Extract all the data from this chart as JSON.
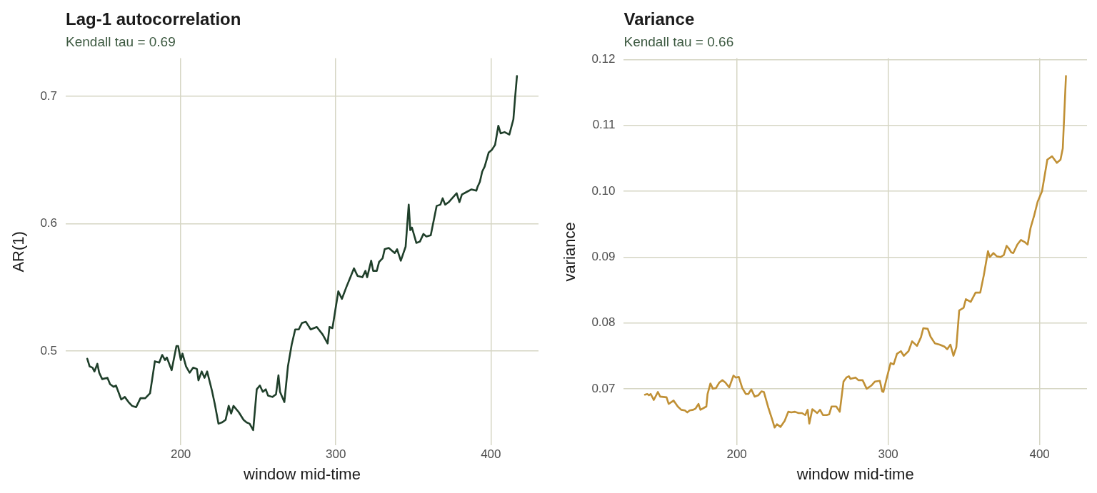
{
  "chart_data": [
    {
      "type": "line",
      "title": "Lag-1 autocorrelation",
      "subtitle": "Kendall tau = 0.69",
      "xlabel": "window mid-time",
      "ylabel": "AR(1)",
      "x": [
        139.7,
        141.2,
        143.1,
        144.3,
        146.2,
        147.4,
        149.3,
        152.7,
        154.4,
        156.7,
        158.2,
        161.6,
        163.9,
        166.3,
        168.6,
        171.2,
        174.0,
        177.1,
        180.2,
        183.3,
        186.1,
        188.0,
        189.8,
        191.0,
        194.1,
        197.2,
        198.3,
        200.0,
        201.1,
        203.4,
        205.7,
        208.0,
        210.4,
        211.4,
        213.5,
        215.3,
        217.0,
        220.1,
        222.0,
        224.3,
        226.6,
        228.9,
        230.9,
        232.5,
        234.0,
        237.4,
        240.5,
        242.4,
        244.4,
        246.7,
        249.0,
        251.0,
        252.9,
        254.8,
        256.3,
        259.1,
        261.4,
        263.0,
        264.0,
        266.8,
        269.1,
        271.5,
        273.8,
        276.1,
        278.1,
        280.7,
        283.8,
        287.7,
        291.5,
        294.7,
        295.9,
        297.8,
        301.6,
        303.9,
        306.7,
        309.4,
        311.7,
        314.0,
        317.1,
        319.1,
        320.2,
        322.8,
        324.1,
        326.4,
        327.9,
        330.2,
        331.5,
        334.1,
        338.0,
        339.5,
        341.9,
        345.0,
        347.0,
        348.0,
        349.1,
        351.9,
        354.2,
        356.5,
        358.4,
        361.2,
        365.0,
        367.4,
        368.9,
        370.5,
        372.8,
        374.3,
        377.9,
        379.7,
        381.3,
        384.4,
        387.5,
        390.6,
        391.4,
        392.9,
        394.4,
        396.0,
        398.6,
        400.6,
        402.7,
        404.8,
        406.3,
        408.8,
        411.9,
        414.5,
        415.6,
        416.8
      ],
      "series": [
        {
          "color": "#1f3f2a",
          "values": [
            0.494,
            0.488,
            0.487,
            0.484,
            0.49,
            0.483,
            0.478,
            0.479,
            0.474,
            0.472,
            0.473,
            0.462,
            0.464,
            0.46,
            0.457,
            0.456,
            0.463,
            0.463,
            0.467,
            0.492,
            0.491,
            0.497,
            0.493,
            0.495,
            0.485,
            0.504,
            0.504,
            0.493,
            0.498,
            0.488,
            0.483,
            0.487,
            0.486,
            0.477,
            0.484,
            0.479,
            0.484,
            0.469,
            0.458,
            0.443,
            0.444,
            0.446,
            0.457,
            0.451,
            0.457,
            0.452,
            0.446,
            0.444,
            0.443,
            0.438,
            0.47,
            0.473,
            0.468,
            0.47,
            0.465,
            0.464,
            0.466,
            0.481,
            0.468,
            0.46,
            0.488,
            0.505,
            0.517,
            0.517,
            0.522,
            0.523,
            0.517,
            0.519,
            0.513,
            0.506,
            0.519,
            0.518,
            0.547,
            0.541,
            0.55,
            0.558,
            0.565,
            0.559,
            0.558,
            0.563,
            0.558,
            0.571,
            0.563,
            0.563,
            0.57,
            0.573,
            0.58,
            0.581,
            0.577,
            0.58,
            0.571,
            0.582,
            0.615,
            0.595,
            0.597,
            0.585,
            0.586,
            0.592,
            0.59,
            0.591,
            0.614,
            0.615,
            0.62,
            0.615,
            0.617,
            0.619,
            0.624,
            0.617,
            0.623,
            0.625,
            0.627,
            0.626,
            0.629,
            0.633,
            0.641,
            0.645,
            0.656,
            0.658,
            0.662,
            0.677,
            0.671,
            0.672,
            0.67,
            0.682,
            0.699,
            0.716
          ]
        }
      ],
      "xlim": [
        125.8,
        430.7
      ],
      "xticks": [
        200,
        300,
        400
      ],
      "ylim": [
        0.426,
        0.73
      ],
      "yticks": [
        0.5,
        0.6,
        0.7
      ],
      "grid": true,
      "legend": false,
      "marker": "none",
      "line_style": "solid"
    },
    {
      "type": "line",
      "title": "Variance",
      "subtitle": "Kendall tau = 0.66",
      "xlabel": "window mid-time",
      "ylabel": "variance",
      "x": [
        139.3,
        140.9,
        142.0,
        143.1,
        145.2,
        147.9,
        149.4,
        153.6,
        155.0,
        158.3,
        161.0,
        163.3,
        165.7,
        167.3,
        168.9,
        171.2,
        172.8,
        174.7,
        176.0,
        179.9,
        180.7,
        182.6,
        184.2,
        186.3,
        188.3,
        190.5,
        192.6,
        195.0,
        197.8,
        199.4,
        201.3,
        203.6,
        206.0,
        207.6,
        209.6,
        211.8,
        214.2,
        216.3,
        217.9,
        221.0,
        223.4,
        225.0,
        226.5,
        228.9,
        231.6,
        234.0,
        236.0,
        238.4,
        240.8,
        243.1,
        245.2,
        246.8,
        247.9,
        249.9,
        253.1,
        255.0,
        256.9,
        259.4,
        261.0,
        262.6,
        265.7,
        268.0,
        270.5,
        272.4,
        274.0,
        275.1,
        278.4,
        280.3,
        283.1,
        285.8,
        289.0,
        291.3,
        294.5,
        296.0,
        296.8,
        298.9,
        301.6,
        303.6,
        305.8,
        308.4,
        310.3,
        313.4,
        315.8,
        319.0,
        321.6,
        323.2,
        326.1,
        328.0,
        330.8,
        333.9,
        337.1,
        339.0,
        341.1,
        343.1,
        345.0,
        346.9,
        349.8,
        351.3,
        354.5,
        357.7,
        360.8,
        363.2,
        365.9,
        367.1,
        369.5,
        371.8,
        374.2,
        376.3,
        378.2,
        379.7,
        381.3,
        382.6,
        385.3,
        387.7,
        390.0,
        392.1,
        394.0,
        396.4,
        398.7,
        401.6,
        405.1,
        408.2,
        411.4,
        413.8,
        415.3,
        417.4
      ],
      "series": [
        {
          "color": "#c09035",
          "values": [
            0.0691,
            0.0692,
            0.069,
            0.0692,
            0.0683,
            0.0695,
            0.0688,
            0.0687,
            0.0677,
            0.0682,
            0.0673,
            0.0668,
            0.0667,
            0.0664,
            0.0667,
            0.0668,
            0.067,
            0.0677,
            0.0668,
            0.0673,
            0.0692,
            0.0708,
            0.07,
            0.0701,
            0.0709,
            0.0713,
            0.0709,
            0.0702,
            0.072,
            0.0717,
            0.0718,
            0.0701,
            0.0692,
            0.0692,
            0.0699,
            0.0688,
            0.069,
            0.0696,
            0.0695,
            0.067,
            0.0653,
            0.0641,
            0.0646,
            0.0642,
            0.0651,
            0.0665,
            0.0664,
            0.0665,
            0.0663,
            0.0663,
            0.066,
            0.0668,
            0.0647,
            0.0669,
            0.0663,
            0.0668,
            0.066,
            0.066,
            0.0661,
            0.0673,
            0.0673,
            0.0665,
            0.0711,
            0.0717,
            0.0719,
            0.0715,
            0.0717,
            0.0713,
            0.0713,
            0.07,
            0.0705,
            0.0711,
            0.0712,
            0.0696,
            0.0695,
            0.0715,
            0.0739,
            0.0737,
            0.0753,
            0.0757,
            0.075,
            0.0757,
            0.0772,
            0.0765,
            0.0778,
            0.0792,
            0.0791,
            0.0779,
            0.0769,
            0.0767,
            0.0764,
            0.076,
            0.0767,
            0.075,
            0.0763,
            0.0819,
            0.0823,
            0.0836,
            0.0832,
            0.0846,
            0.0846,
            0.0873,
            0.0909,
            0.09,
            0.0906,
            0.0901,
            0.09,
            0.0903,
            0.0917,
            0.0913,
            0.0907,
            0.0906,
            0.0919,
            0.0926,
            0.0923,
            0.0919,
            0.0944,
            0.0963,
            0.0984,
            0.1,
            0.1048,
            0.1053,
            0.1043,
            0.1048,
            0.1065,
            0.1175
          ]
        }
      ],
      "xlim": [
        125.4,
        431.3
      ],
      "xticks": [
        200,
        300,
        400
      ],
      "ylim": [
        0.0614,
        0.1202
      ],
      "yticks": [
        0.07,
        0.08,
        0.09,
        {
          "value": 0.1,
          "label": "0.10"
        },
        0.11,
        0.12
      ],
      "grid": true,
      "legend": false,
      "marker": "none",
      "line_style": "solid"
    }
  ]
}
